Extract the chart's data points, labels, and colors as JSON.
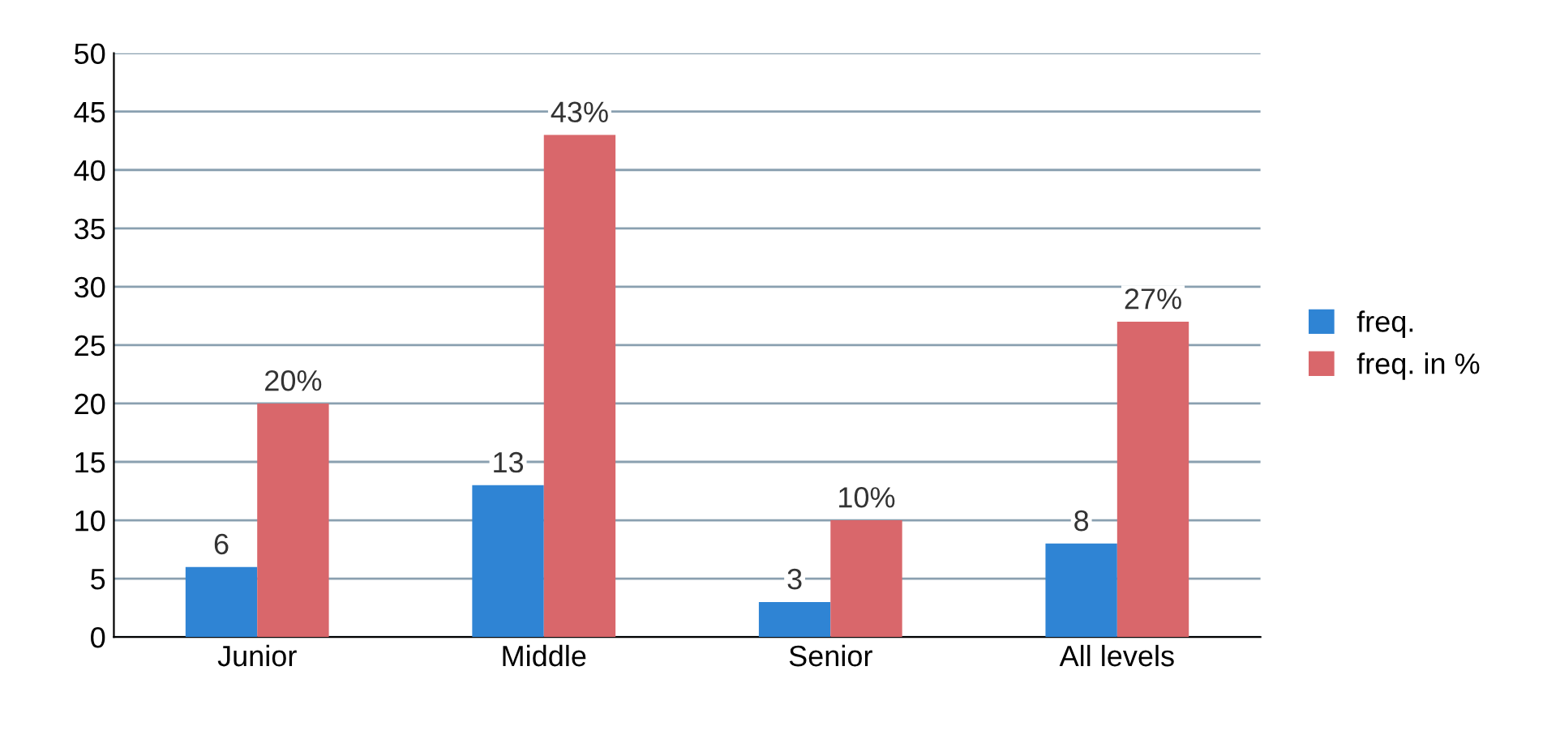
{
  "chart_data": {
    "type": "bar",
    "categories": [
      "Junior",
      "Middle",
      "Senior",
      "All levels"
    ],
    "series": [
      {
        "name": "freq.",
        "color": "#2f84d4",
        "values": [
          6,
          13,
          3,
          8
        ],
        "value_labels": [
          "6",
          "13",
          "3",
          "8"
        ]
      },
      {
        "name": "freq. in %",
        "color": "#d9676b",
        "values": [
          20,
          43,
          10,
          27
        ],
        "value_labels": [
          "20%",
          "43%",
          "10%",
          "27%"
        ]
      }
    ],
    "ylim": [
      0,
      50
    ],
    "yticks": [
      0,
      5,
      10,
      15,
      20,
      25,
      30,
      35,
      40,
      45,
      50
    ],
    "grid": "y",
    "legend": "right"
  }
}
